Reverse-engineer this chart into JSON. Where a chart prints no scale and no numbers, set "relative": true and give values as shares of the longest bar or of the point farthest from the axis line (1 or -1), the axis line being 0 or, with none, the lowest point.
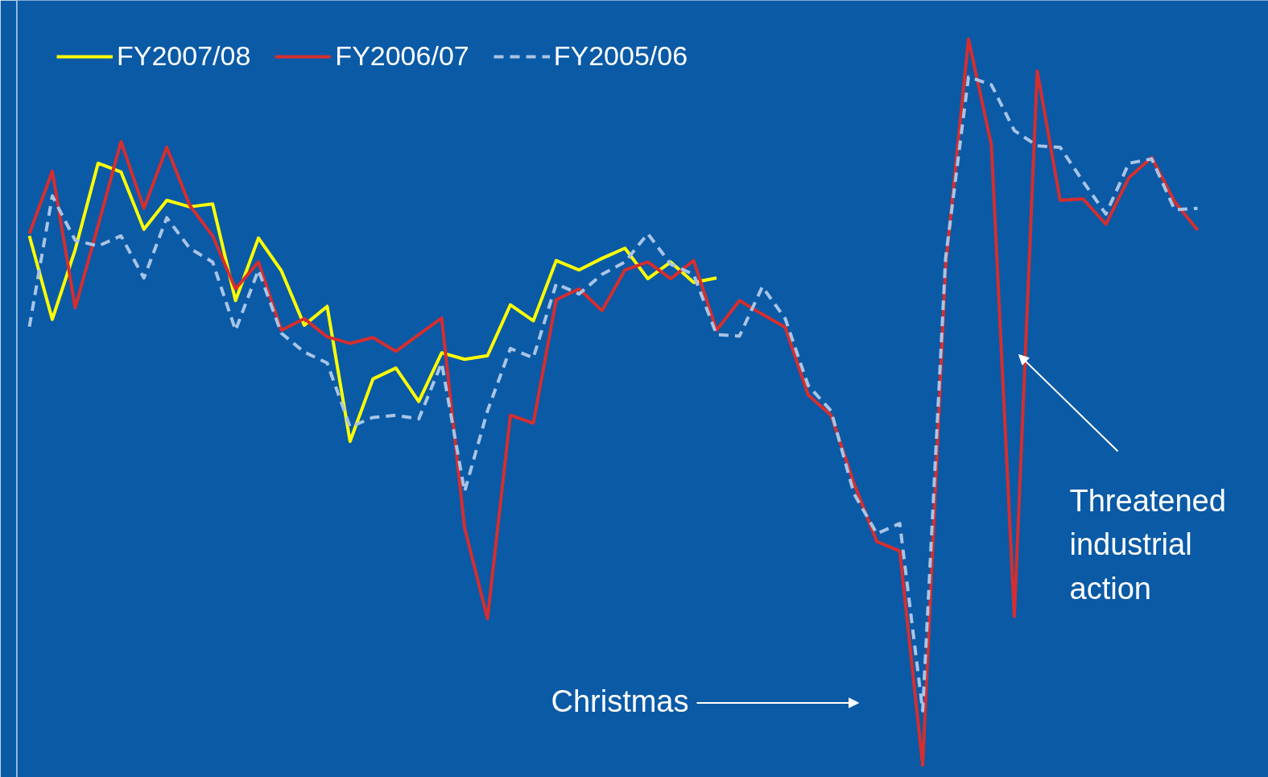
{
  "chart_data": {
    "type": "line",
    "relative": true,
    "categories": [
      null,
      null,
      null,
      null,
      null,
      null,
      null,
      null,
      null,
      null,
      null,
      null,
      null,
      null,
      null,
      null,
      null,
      null,
      null,
      null,
      null,
      null,
      null,
      null,
      null,
      null,
      null,
      null,
      null,
      null,
      null,
      null,
      null,
      null,
      null,
      null,
      null,
      null,
      null,
      null,
      null,
      null,
      null,
      null,
      null,
      null,
      null,
      null,
      null,
      null,
      null,
      null
    ],
    "series": [
      {
        "name": "FY2007/08",
        "color": "#ffff00",
        "line_style": "solid",
        "values": [
          0.729,
          0.614,
          0.71,
          0.829,
          0.817,
          0.738,
          0.778,
          0.769,
          0.773,
          0.64,
          0.726,
          0.681,
          0.606,
          0.632,
          0.446,
          0.532,
          0.547,
          0.501,
          0.568,
          0.559,
          0.564,
          0.634,
          0.612,
          0.695,
          0.682,
          0.698,
          0.712,
          0.67,
          0.693,
          0.665,
          0.671,
          null,
          null,
          null,
          null,
          null,
          null,
          null,
          null,
          null,
          null,
          null,
          null,
          null,
          null,
          null,
          null,
          null,
          null,
          null,
          null,
          null
        ]
      },
      {
        "name": "FY2006/07",
        "color": "#d62e2e",
        "line_style": "solid",
        "values": [
          0.732,
          0.818,
          0.63,
          0.743,
          0.859,
          0.767,
          0.851,
          0.771,
          0.729,
          0.656,
          0.693,
          0.599,
          0.615,
          0.59,
          0.581,
          0.589,
          0.57,
          0.593,
          0.616,
          0.327,
          0.202,
          0.482,
          0.471,
          0.641,
          0.656,
          0.626,
          0.682,
          0.693,
          0.67,
          0.695,
          0.599,
          0.64,
          0.621,
          0.603,
          0.51,
          0.482,
          0.388,
          0.308,
          0.295,
          0,
          0.687,
          1,
          0.854,
          0.205,
          0.956,
          0.778,
          0.78,
          0.745,
          0.809,
          0.837,
          0.776,
          0.737
        ]
      },
      {
        "name": "FY2005/06",
        "color": "#a9c4e6",
        "line_style": "dashed",
        "values": [
          0.604,
          0.784,
          0.723,
          0.715,
          0.729,
          0.671,
          0.754,
          0.712,
          0.693,
          0.599,
          0.682,
          0.595,
          0.569,
          0.554,
          0.466,
          0.479,
          0.482,
          0.477,
          0.554,
          0.377,
          0.488,
          0.574,
          0.561,
          0.663,
          0.649,
          0.676,
          0.693,
          0.732,
          0.69,
          0.676,
          0.593,
          0.591,
          0.659,
          0.615,
          0.523,
          0.488,
          0.374,
          0.319,
          0.333,
          0.075,
          0.698,
          0.948,
          0.937,
          0.874,
          0.853,
          0.851,
          0.804,
          0.759,
          0.829,
          0.835,
          0.765,
          0.767
        ]
      }
    ],
    "legend": "top left",
    "grid": false,
    "marker": "none",
    "annotations": [
      "Christmas",
      "Threatened industrial action"
    ]
  }
}
